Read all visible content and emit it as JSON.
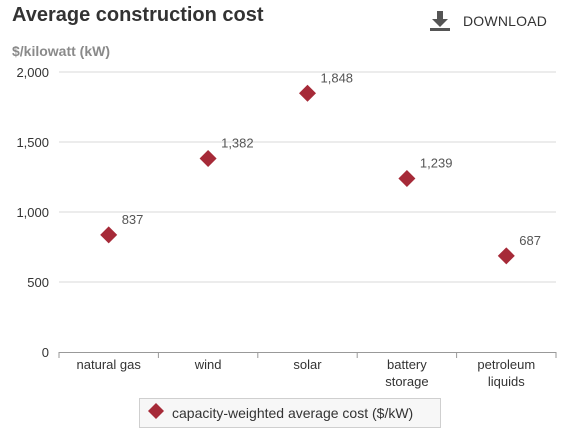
{
  "title": "Average construction cost",
  "subtitle": "$/kilowatt (kW)",
  "download_label": "DOWNLOAD",
  "icons": {
    "download": "download-icon",
    "legend_marker": "diamond-marker-icon"
  },
  "colors": {
    "marker": "#a62a38",
    "grid": "#d9d9d9",
    "axis": "#999999",
    "text": "#333333"
  },
  "chart_data": {
    "type": "scatter",
    "marker": "diamond",
    "categories": [
      "natural gas",
      "wind",
      "solar",
      "battery storage",
      "petroleum liquids"
    ],
    "category_lines": [
      [
        "natural gas"
      ],
      [
        "wind"
      ],
      [
        "solar"
      ],
      [
        "battery",
        "storage"
      ],
      [
        "petroleum",
        "liquids"
      ]
    ],
    "series": [
      {
        "name": "capacity-weighted average cost ($/kW)",
        "values": [
          837,
          1382,
          1848,
          1239,
          687
        ]
      }
    ],
    "value_labels": [
      "837",
      "1,382",
      "1,848",
      "1,239",
      "687"
    ],
    "ylim": [
      0,
      2000
    ],
    "yticks": [
      0,
      500,
      1000,
      1500,
      2000
    ],
    "ytick_labels": [
      "0",
      "500",
      "1,000",
      "1,500",
      "2,000"
    ],
    "grid": true,
    "legend_position": "bottom"
  }
}
